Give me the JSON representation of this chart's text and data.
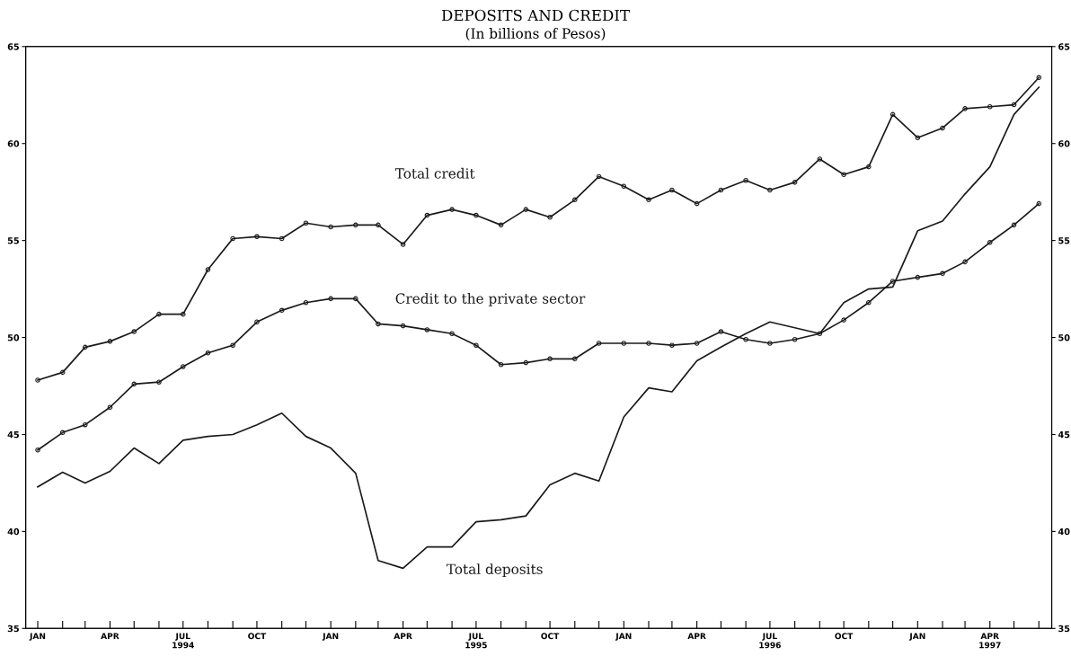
{
  "chart_data": {
    "type": "line",
    "title": "DEPOSITS AND CREDIT",
    "subtitle": "(In billions of Pesos)",
    "x": [
      "1994-01",
      "1994-02",
      "1994-03",
      "1994-04",
      "1994-05",
      "1994-06",
      "1994-07",
      "1994-08",
      "1994-09",
      "1994-10",
      "1994-11",
      "1994-12",
      "1995-01",
      "1995-02",
      "1995-03",
      "1995-04",
      "1995-05",
      "1995-06",
      "1995-07",
      "1995-08",
      "1995-09",
      "1995-10",
      "1995-11",
      "1995-12",
      "1996-01",
      "1996-02",
      "1996-03",
      "1996-04",
      "1996-05",
      "1996-06",
      "1996-07",
      "1996-08",
      "1996-09",
      "1996-10",
      "1996-11",
      "1996-12",
      "1997-01",
      "1997-02",
      "1997-03",
      "1997-04",
      "1997-05",
      "1997-06"
    ],
    "series": [
      {
        "name": "Total credit",
        "color": "#1a1a1a",
        "marker": "circle",
        "values": [
          47.8,
          48.2,
          49.5,
          49.8,
          50.3,
          51.2,
          51.2,
          53.5,
          55.1,
          55.2,
          55.1,
          55.9,
          55.7,
          55.8,
          55.8,
          54.8,
          56.3,
          56.6,
          56.3,
          55.8,
          56.6,
          56.2,
          57.1,
          58.3,
          57.8,
          57.1,
          57.6,
          56.9,
          57.6,
          58.1,
          57.6,
          58.0,
          59.2,
          58.4,
          58.8,
          61.5,
          60.3,
          60.8,
          61.8,
          61.9,
          62.0,
          63.4
        ]
      },
      {
        "name": "Credit to the private sector",
        "color": "#1a1a1a",
        "marker": "circle",
        "values": [
          44.2,
          45.1,
          45.5,
          46.4,
          47.6,
          47.7,
          48.5,
          49.2,
          49.6,
          50.8,
          51.4,
          51.8,
          52.0,
          52.0,
          50.7,
          50.6,
          50.4,
          50.2,
          49.6,
          48.6,
          48.7,
          48.9,
          48.9,
          49.7,
          49.7,
          49.7,
          49.6,
          49.7,
          50.3,
          49.9,
          49.7,
          49.9,
          50.2,
          50.9,
          51.8,
          52.9,
          53.1,
          53.3,
          53.9,
          54.9,
          55.8,
          56.9
        ]
      },
      {
        "name": "Total deposits",
        "color": "#1a1a1a",
        "marker": "none",
        "values": [
          42.3,
          43.05,
          42.5,
          43.1,
          44.3,
          43.5,
          44.7,
          44.9,
          45.0,
          45.5,
          46.1,
          44.9,
          44.3,
          43.0,
          38.5,
          38.1,
          39.2,
          39.2,
          40.5,
          40.6,
          40.8,
          42.4,
          43.0,
          42.6,
          45.9,
          47.4,
          47.2,
          48.8,
          49.5,
          50.2,
          50.8,
          50.5,
          50.2,
          51.8,
          52.5,
          52.6,
          55.5,
          56.0,
          57.4,
          58.8,
          61.5,
          62.9
        ]
      }
    ],
    "line_style": "solid",
    "xlim": [
      "1993-12-17",
      "1997-06-17"
    ],
    "xticks": [
      {
        "value": "1994-01",
        "label": "JAN"
      },
      {
        "value": "1994-02",
        "label": null
      },
      {
        "value": "1994-03",
        "label": null
      },
      {
        "value": "1994-04",
        "label": "APR"
      },
      {
        "value": "1994-05",
        "label": null
      },
      {
        "value": "1994-06",
        "label": null
      },
      {
        "value": "1994-07",
        "label": "JUL\n1994"
      },
      {
        "value": "1994-08",
        "label": null
      },
      {
        "value": "1994-09",
        "label": null
      },
      {
        "value": "1994-10",
        "label": "OCT"
      },
      {
        "value": "1994-11",
        "label": null
      },
      {
        "value": "1994-12",
        "label": null
      },
      {
        "value": "1995-01",
        "label": "JAN"
      },
      {
        "value": "1995-02",
        "label": null
      },
      {
        "value": "1995-03",
        "label": null
      },
      {
        "value": "1995-04",
        "label": "APR"
      },
      {
        "value": "1995-05",
        "label": null
      },
      {
        "value": "1995-06",
        "label": null
      },
      {
        "value": "1995-07",
        "label": "JUL\n1995"
      },
      {
        "value": "1995-08",
        "label": null
      },
      {
        "value": "1995-09",
        "label": null
      },
      {
        "value": "1995-10",
        "label": "OCT"
      },
      {
        "value": "1995-11",
        "label": null
      },
      {
        "value": "1995-12",
        "label": null
      },
      {
        "value": "1996-01",
        "label": "JAN"
      },
      {
        "value": "1996-02",
        "label": null
      },
      {
        "value": "1996-03",
        "label": null
      },
      {
        "value": "1996-04",
        "label": "APR"
      },
      {
        "value": "1996-05",
        "label": null
      },
      {
        "value": "1996-06",
        "label": null
      },
      {
        "value": "1996-07",
        "label": "JUL\n1996"
      },
      {
        "value": "1996-08",
        "label": null
      },
      {
        "value": "1996-09",
        "label": null
      },
      {
        "value": "1996-10",
        "label": "OCT"
      },
      {
        "value": "1996-11",
        "label": null
      },
      {
        "value": "1996-12",
        "label": null
      },
      {
        "value": "1997-01",
        "label": "JAN"
      },
      {
        "value": "1997-02",
        "label": null
      },
      {
        "value": "1997-03",
        "label": null
      },
      {
        "value": "1997-04",
        "label": "APR\n1997"
      },
      {
        "value": "1997-05",
        "label": null
      },
      {
        "value": "1997-06",
        "label": null
      }
    ],
    "ylim": [
      35,
      65
    ],
    "yticks": [
      35,
      40,
      45,
      50,
      55,
      60,
      65
    ],
    "y2lim": [
      35,
      65
    ],
    "y2ticks": [
      35,
      40,
      45,
      50,
      55,
      60,
      65
    ]
  }
}
